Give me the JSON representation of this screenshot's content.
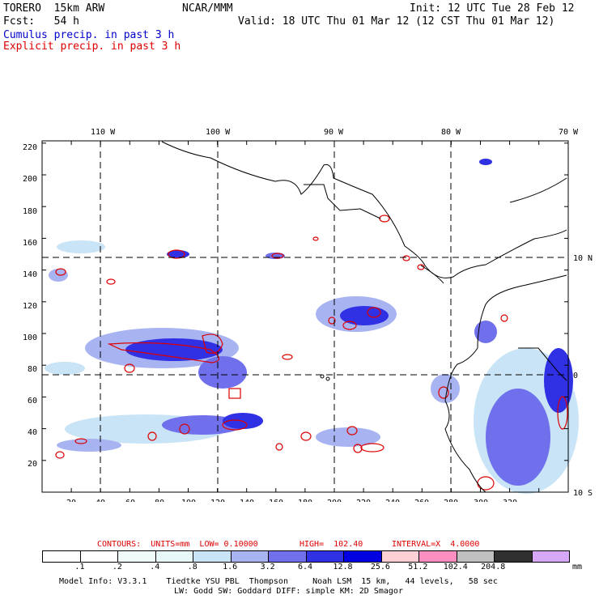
{
  "header": {
    "model": "TORERO  15km ARW",
    "org": "NCAR/MMM",
    "init": "Init: 12 UTC Tue 28 Feb 12",
    "fcst": "Fcst:   54 h",
    "valid": "Valid: 18 UTC Thu 01 Mar 12 (12 CST Thu 01 Mar 12)",
    "field1": "Cumulus precip. in past 3 h",
    "field2": "Explicit precip. in past 3 h"
  },
  "map": {
    "lon_labels": [
      "110 W",
      "100 W",
      "90 W",
      "80 W",
      "70 W"
    ],
    "lat_labels": [
      "10 N",
      "0",
      "10 S"
    ],
    "x_ticks": [
      "20",
      "40",
      "60",
      "80",
      "100",
      "120",
      "140",
      "160",
      "180",
      "200",
      "220",
      "240",
      "260",
      "280",
      "300",
      "320"
    ],
    "y_ticks": [
      "220",
      "200",
      "180",
      "160",
      "140",
      "120",
      "100",
      "80",
      "60",
      "40",
      "20"
    ]
  },
  "contours": {
    "units": "CONTOURS:  UNITS=mm  LOW= 0.10000",
    "high": "HIGH=  102.40",
    "interval": "INTERVAL=X  4.0000"
  },
  "colorbar": {
    "colors": [
      "#ffffff",
      "#ffffff",
      "#f0fafa",
      "#e8f8f8",
      "#c8e4f6",
      "#a8b4f2",
      "#7070ec",
      "#3030e4",
      "#0000e0",
      "#ffcfd6",
      "#ff8fc0",
      "#c0c0c0",
      "#303030",
      "#d8a8f8"
    ],
    "labels": [
      ".1",
      ".2",
      ".4",
      ".8",
      "1.6",
      "3.2",
      "6.4",
      "12.8",
      "25.6",
      "51.2",
      "102.4",
      "204.8"
    ],
    "unit": "mm"
  },
  "footer": {
    "line1": "Model Info: V3.3.1    Tiedtke YSU PBL  Thompson     Noah LSM  15 km,   44 levels,   58 sec",
    "line2": "LW: Godd SW: Goddard DIFF: simple KM: 2D Smagor"
  }
}
